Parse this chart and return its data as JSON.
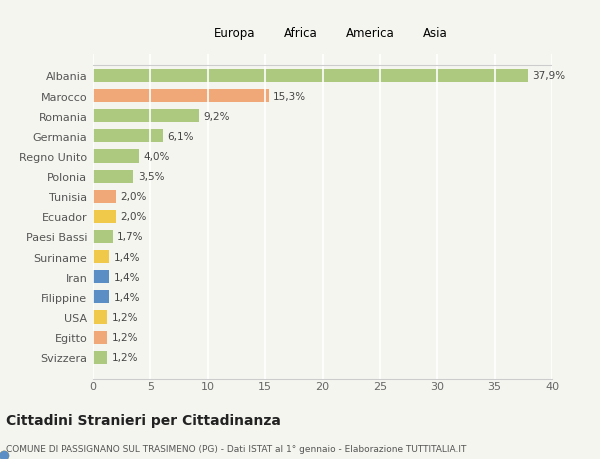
{
  "countries": [
    "Albania",
    "Marocco",
    "Romania",
    "Germania",
    "Regno Unito",
    "Polonia",
    "Tunisia",
    "Ecuador",
    "Paesi Bassi",
    "Suriname",
    "Iran",
    "Filippine",
    "USA",
    "Egitto",
    "Svizzera"
  ],
  "values": [
    37.9,
    15.3,
    9.2,
    6.1,
    4.0,
    3.5,
    2.0,
    2.0,
    1.7,
    1.4,
    1.4,
    1.4,
    1.2,
    1.2,
    1.2
  ],
  "labels": [
    "37,9%",
    "15,3%",
    "9,2%",
    "6,1%",
    "4,0%",
    "3,5%",
    "2,0%",
    "2,0%",
    "1,7%",
    "1,4%",
    "1,4%",
    "1,4%",
    "1,2%",
    "1,2%",
    "1,2%"
  ],
  "continents": [
    "Europa",
    "Africa",
    "Europa",
    "Europa",
    "Europa",
    "Europa",
    "Africa",
    "America",
    "Europa",
    "America",
    "Asia",
    "Asia",
    "America",
    "Africa",
    "Europa"
  ],
  "colors": {
    "Europa": "#adc97f",
    "Africa": "#f0a878",
    "America": "#f0c84a",
    "Asia": "#5b8ec4"
  },
  "legend_order": [
    "Europa",
    "Africa",
    "America",
    "Asia"
  ],
  "title": "Cittadini Stranieri per Cittadinanza",
  "subtitle": "COMUNE DI PASSIGNANO SUL TRASIMENO (PG) - Dati ISTAT al 1° gennaio - Elaborazione TUTTITALIA.IT",
  "xlim": [
    0,
    40
  ],
  "xticks": [
    0,
    5,
    10,
    15,
    20,
    25,
    30,
    35,
    40
  ],
  "background_color": "#f5f5f0",
  "grid_color": "#ffffff",
  "bar_height": 0.65
}
